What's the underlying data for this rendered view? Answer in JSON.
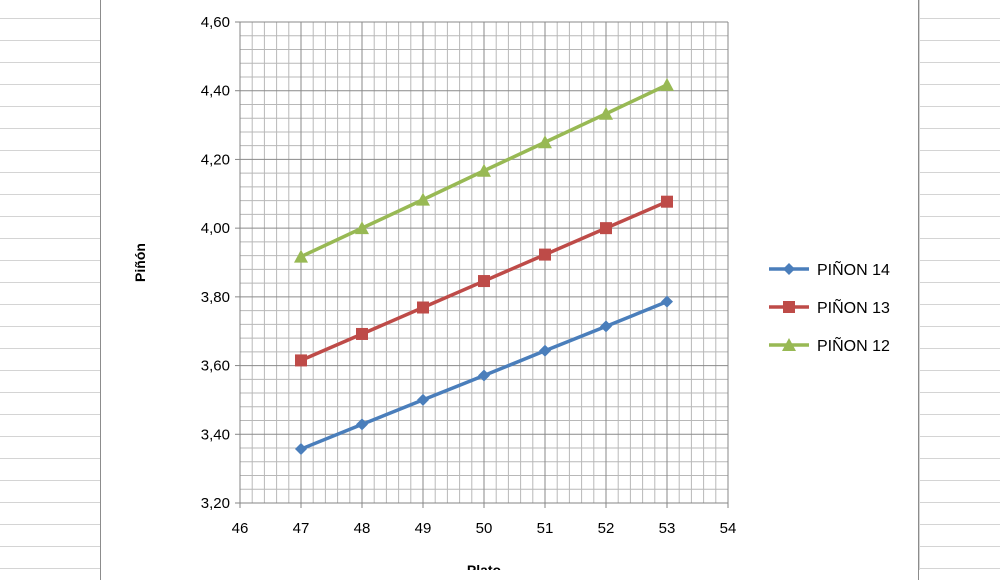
{
  "chart_data": {
    "type": "line",
    "title": "",
    "ylabel": "Piñón",
    "xlabel": "Plato",
    "xlim": [
      46,
      54
    ],
    "ylim": [
      3.2,
      4.6
    ],
    "x_ticks": [
      "46",
      "47",
      "48",
      "49",
      "50",
      "51",
      "52",
      "53",
      "54"
    ],
    "y_ticks": [
      "3,20",
      "3,40",
      "3,60",
      "3,80",
      "4,00",
      "4,20",
      "4,40",
      "4,60"
    ],
    "grid": true,
    "legend_position": "right",
    "x": [
      47,
      48,
      49,
      50,
      51,
      52,
      53
    ],
    "series": [
      {
        "name": "PIÑON 14",
        "color": "#4a7ebb",
        "marker": "diamond",
        "values": [
          3.357,
          3.429,
          3.5,
          3.571,
          3.643,
          3.714,
          3.786
        ]
      },
      {
        "name": "PIÑON 13",
        "color": "#be4b48",
        "marker": "square",
        "values": [
          3.615,
          3.692,
          3.769,
          3.846,
          3.923,
          4.0,
          4.077
        ]
      },
      {
        "name": "PIÑON 12",
        "color": "#98b954",
        "marker": "triangle",
        "values": [
          3.917,
          4.0,
          4.083,
          4.167,
          4.25,
          4.333,
          4.417
        ]
      }
    ]
  }
}
